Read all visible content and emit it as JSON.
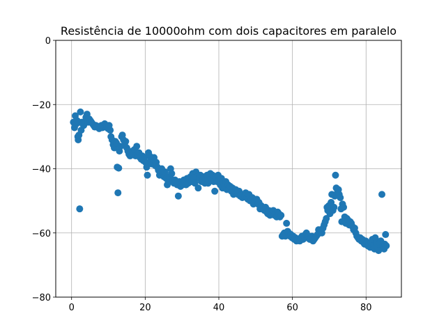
{
  "chart_data": {
    "type": "scatter",
    "title": "Resistência de 10000ohm com dois capacitores em paralelo",
    "xlabel": "",
    "ylabel": "",
    "xlim": [
      -4.3,
      89.6
    ],
    "ylim": [
      -80,
      0
    ],
    "xticks": [
      0,
      20,
      40,
      60,
      80
    ],
    "yticks": [
      0,
      -20,
      -40,
      -60,
      -80
    ],
    "grid": true,
    "marker_color": "#1f77b4",
    "points": [
      [
        0.5,
        -25.5
      ],
      [
        0.8,
        -27.2
      ],
      [
        1.0,
        -23.5
      ],
      [
        1.3,
        -26.0
      ],
      [
        1.5,
        -25.0
      ],
      [
        1.7,
        -30.0
      ],
      [
        1.8,
        -31.0
      ],
      [
        2.0,
        -29.5
      ],
      [
        2.2,
        -52.5
      ],
      [
        2.4,
        -22.3
      ],
      [
        2.6,
        -28.0
      ],
      [
        2.8,
        -25.5
      ],
      [
        3.0,
        -26.0
      ],
      [
        3.3,
        -26.5
      ],
      [
        3.6,
        -25.8
      ],
      [
        3.9,
        -24.0
      ],
      [
        4.2,
        -23.0
      ],
      [
        4.5,
        -25.5
      ],
      [
        4.8,
        -24.5
      ],
      [
        5.1,
        -25.0
      ],
      [
        5.4,
        -25.5
      ],
      [
        5.7,
        -26.0
      ],
      [
        6.0,
        -26.5
      ],
      [
        6.3,
        -27.0
      ],
      [
        6.6,
        -26.5
      ],
      [
        6.9,
        -27.0
      ],
      [
        7.2,
        -26.8
      ],
      [
        7.5,
        -27.5
      ],
      [
        7.8,
        -27.0
      ],
      [
        8.1,
        -26.5
      ],
      [
        8.4,
        -27.2
      ],
      [
        8.7,
        -26.5
      ],
      [
        9.0,
        -26.0
      ],
      [
        9.3,
        -27.0
      ],
      [
        9.6,
        -26.8
      ],
      [
        9.9,
        -27.5
      ],
      [
        10.2,
        -26.5
      ],
      [
        10.5,
        -28.0
      ],
      [
        10.7,
        -30.0
      ],
      [
        11.0,
        -31.0
      ],
      [
        11.3,
        -32.5
      ],
      [
        11.6,
        -33.5
      ],
      [
        11.9,
        -31.5
      ],
      [
        12.2,
        -32.0
      ],
      [
        12.4,
        -39.5
      ],
      [
        12.6,
        -47.5
      ],
      [
        12.8,
        -39.8
      ],
      [
        13.0,
        -34.5
      ],
      [
        13.3,
        -33.0
      ],
      [
        13.6,
        -30.0
      ],
      [
        13.8,
        -29.5
      ],
      [
        14.1,
        -31.0
      ],
      [
        14.4,
        -32.5
      ],
      [
        14.7,
        -31.5
      ],
      [
        15.0,
        -33.5
      ],
      [
        15.3,
        -34.5
      ],
      [
        15.6,
        -35.5
      ],
      [
        15.9,
        -36.0
      ],
      [
        16.2,
        -35.0
      ],
      [
        16.5,
        -34.5
      ],
      [
        16.8,
        -35.5
      ],
      [
        17.1,
        -34.0
      ],
      [
        17.4,
        -36.0
      ],
      [
        17.7,
        -33.0
      ],
      [
        18.0,
        -35.5
      ],
      [
        18.3,
        -35.0
      ],
      [
        18.6,
        -36.5
      ],
      [
        18.9,
        -37.0
      ],
      [
        19.2,
        -36.0
      ],
      [
        19.5,
        -37.5
      ],
      [
        19.8,
        -36.5
      ],
      [
        20.1,
        -38.0
      ],
      [
        20.4,
        -39.5
      ],
      [
        20.6,
        -42.0
      ],
      [
        20.9,
        -35.0
      ],
      [
        21.2,
        -36.0
      ],
      [
        21.5,
        -37.5
      ],
      [
        21.8,
        -38.5
      ],
      [
        22.1,
        -37.0
      ],
      [
        22.4,
        -36.5
      ],
      [
        22.7,
        -39.0
      ],
      [
        23.0,
        -38.0
      ],
      [
        23.3,
        -39.5
      ],
      [
        23.6,
        -40.5
      ],
      [
        23.9,
        -42.0
      ],
      [
        24.2,
        -41.0
      ],
      [
        24.5,
        -40.0
      ],
      [
        24.8,
        -41.5
      ],
      [
        25.1,
        -42.5
      ],
      [
        25.4,
        -41.0
      ],
      [
        25.7,
        -43.0
      ],
      [
        26.0,
        -45.0
      ],
      [
        26.3,
        -44.0
      ],
      [
        26.6,
        -42.5
      ],
      [
        26.9,
        -40.0
      ],
      [
        27.2,
        -41.5
      ],
      [
        27.5,
        -43.5
      ],
      [
        27.8,
        -44.5
      ],
      [
        28.1,
        -43.5
      ],
      [
        28.4,
        -44.0
      ],
      [
        28.7,
        -45.0
      ],
      [
        29.0,
        -48.5
      ],
      [
        29.3,
        -44.0
      ],
      [
        29.6,
        -45.5
      ],
      [
        29.9,
        -44.5
      ],
      [
        30.2,
        -45.0
      ],
      [
        30.5,
        -43.5
      ],
      [
        30.8,
        -44.0
      ],
      [
        31.1,
        -45.0
      ],
      [
        31.4,
        -43.0
      ],
      [
        31.7,
        -44.5
      ],
      [
        32.0,
        -43.0
      ],
      [
        32.3,
        -42.5
      ],
      [
        32.6,
        -44.0
      ],
      [
        32.9,
        -41.5
      ],
      [
        33.2,
        -43.0
      ],
      [
        33.5,
        -44.5
      ],
      [
        33.8,
        -41.0
      ],
      [
        34.1,
        -42.5
      ],
      [
        34.4,
        -46.0
      ],
      [
        34.7,
        -43.0
      ],
      [
        35.0,
        -42.0
      ],
      [
        35.3,
        -44.0
      ],
      [
        35.6,
        -43.5
      ],
      [
        35.9,
        -42.5
      ],
      [
        36.2,
        -44.5
      ],
      [
        36.5,
        -43.0
      ],
      [
        36.8,
        -42.0
      ],
      [
        37.1,
        -44.5
      ],
      [
        37.4,
        -43.5
      ],
      [
        37.7,
        -41.5
      ],
      [
        38.0,
        -43.0
      ],
      [
        38.3,
        -42.0
      ],
      [
        38.6,
        -44.0
      ],
      [
        38.9,
        -47.0
      ],
      [
        39.2,
        -42.5
      ],
      [
        39.5,
        -44.0
      ],
      [
        39.8,
        -42.0
      ],
      [
        40.1,
        -43.5
      ],
      [
        40.4,
        -45.0
      ],
      [
        40.7,
        -43.0
      ],
      [
        41.0,
        -46.0
      ],
      [
        41.3,
        -44.5
      ],
      [
        41.6,
        -45.5
      ],
      [
        41.9,
        -44.0
      ],
      [
        42.2,
        -46.5
      ],
      [
        42.5,
        -45.0
      ],
      [
        42.8,
        -46.0
      ],
      [
        43.1,
        -45.5
      ],
      [
        43.4,
        -47.0
      ],
      [
        43.7,
        -46.0
      ],
      [
        44.0,
        -48.0
      ],
      [
        44.3,
        -47.0
      ],
      [
        44.6,
        -46.5
      ],
      [
        44.9,
        -47.5
      ],
      [
        45.2,
        -48.0
      ],
      [
        45.5,
        -47.0
      ],
      [
        45.8,
        -48.5
      ],
      [
        46.1,
        -48.0
      ],
      [
        46.4,
        -49.0
      ],
      [
        46.7,
        -48.0
      ],
      [
        47.0,
        -48.5
      ],
      [
        47.3,
        -47.5
      ],
      [
        47.6,
        -49.0
      ],
      [
        47.9,
        -49.5
      ],
      [
        48.2,
        -48.0
      ],
      [
        48.5,
        -50.0
      ],
      [
        48.8,
        -49.5
      ],
      [
        49.1,
        -49.0
      ],
      [
        49.4,
        -51.0
      ],
      [
        49.7,
        -49.5
      ],
      [
        50.0,
        -50.0
      ],
      [
        50.3,
        -49.5
      ],
      [
        50.6,
        -51.0
      ],
      [
        50.9,
        -50.5
      ],
      [
        51.2,
        -52.5
      ],
      [
        51.5,
        -51.5
      ],
      [
        51.8,
        -52.0
      ],
      [
        52.1,
        -52.5
      ],
      [
        52.4,
        -53.0
      ],
      [
        52.7,
        -52.0
      ],
      [
        53.0,
        -53.5
      ],
      [
        53.3,
        -54.0
      ],
      [
        53.6,
        -53.0
      ],
      [
        53.9,
        -54.5
      ],
      [
        54.2,
        -53.5
      ],
      [
        54.5,
        -54.0
      ],
      [
        54.8,
        -53.0
      ],
      [
        55.1,
        -54.5
      ],
      [
        55.4,
        -54.0
      ],
      [
        55.7,
        -55.0
      ],
      [
        56.0,
        -53.5
      ],
      [
        56.3,
        -54.0
      ],
      [
        56.6,
        -55.0
      ],
      [
        56.9,
        -54.5
      ],
      [
        57.2,
        -61.0
      ],
      [
        57.5,
        -60.5
      ],
      [
        57.8,
        -60.0
      ],
      [
        58.1,
        -61.0
      ],
      [
        58.4,
        -57.0
      ],
      [
        58.7,
        -59.5
      ],
      [
        59.0,
        -60.0
      ],
      [
        59.3,
        -61.0
      ],
      [
        59.6,
        -60.5
      ],
      [
        59.9,
        -61.5
      ],
      [
        60.2,
        -61.0
      ],
      [
        60.5,
        -62.0
      ],
      [
        60.8,
        -61.5
      ],
      [
        61.1,
        -62.5
      ],
      [
        61.4,
        -62.0
      ],
      [
        61.7,
        -62.0
      ],
      [
        62.0,
        -62.5
      ],
      [
        62.3,
        -61.5
      ],
      [
        62.6,
        -61.0
      ],
      [
        62.9,
        -62.0
      ],
      [
        63.2,
        -61.0
      ],
      [
        63.5,
        -60.5
      ],
      [
        63.8,
        -60.0
      ],
      [
        64.1,
        -61.5
      ],
      [
        64.4,
        -61.0
      ],
      [
        64.7,
        -62.0
      ],
      [
        65.0,
        -61.5
      ],
      [
        65.3,
        -61.0
      ],
      [
        65.6,
        -62.5
      ],
      [
        65.9,
        -62.0
      ],
      [
        66.2,
        -61.5
      ],
      [
        66.5,
        -61.0
      ],
      [
        66.8,
        -60.5
      ],
      [
        67.1,
        -59.0
      ],
      [
        67.4,
        -60.0
      ],
      [
        67.7,
        -59.5
      ],
      [
        68.0,
        -60.0
      ],
      [
        68.3,
        -58.5
      ],
      [
        68.6,
        -57.5
      ],
      [
        68.9,
        -56.5
      ],
      [
        69.2,
        -55.5
      ],
      [
        69.4,
        -52.0
      ],
      [
        69.6,
        -53.0
      ],
      [
        69.9,
        -51.5
      ],
      [
        70.2,
        -54.0
      ],
      [
        70.5,
        -50.5
      ],
      [
        70.7,
        -48.0
      ],
      [
        71.0,
        -53.0
      ],
      [
        71.3,
        -52.0
      ],
      [
        71.5,
        -48.5
      ],
      [
        71.7,
        -42.0
      ],
      [
        71.9,
        -46.0
      ],
      [
        72.2,
        -47.5
      ],
      [
        72.5,
        -46.5
      ],
      [
        72.7,
        -48.0
      ],
      [
        73.0,
        -49.0
      ],
      [
        73.2,
        -52.5
      ],
      [
        73.4,
        -56.5
      ],
      [
        73.6,
        -51.0
      ],
      [
        73.9,
        -52.0
      ],
      [
        74.2,
        -55.0
      ],
      [
        74.5,
        -57.0
      ],
      [
        74.8,
        -55.5
      ],
      [
        75.1,
        -56.0
      ],
      [
        75.4,
        -57.5
      ],
      [
        75.7,
        -56.5
      ],
      [
        76.0,
        -57.0
      ],
      [
        76.3,
        -58.0
      ],
      [
        76.6,
        -59.0
      ],
      [
        76.9,
        -58.5
      ],
      [
        77.2,
        -60.0
      ],
      [
        77.5,
        -61.0
      ],
      [
        77.8,
        -61.5
      ],
      [
        78.1,
        -62.0
      ],
      [
        78.4,
        -61.5
      ],
      [
        78.7,
        -62.5
      ],
      [
        79.0,
        -62.0
      ],
      [
        79.3,
        -63.0
      ],
      [
        79.6,
        -63.5
      ],
      [
        79.9,
        -62.5
      ],
      [
        80.2,
        -63.0
      ],
      [
        80.5,
        -64.0
      ],
      [
        80.8,
        -63.5
      ],
      [
        81.1,
        -64.5
      ],
      [
        81.4,
        -63.0
      ],
      [
        81.7,
        -62.0
      ],
      [
        82.0,
        -64.0
      ],
      [
        82.3,
        -65.0
      ],
      [
        82.5,
        -61.5
      ],
      [
        82.8,
        -63.5
      ],
      [
        83.1,
        -64.5
      ],
      [
        83.4,
        -65.5
      ],
      [
        83.7,
        -63.0
      ],
      [
        84.0,
        -62.5
      ],
      [
        84.3,
        -48.0
      ],
      [
        84.6,
        -64.0
      ],
      [
        84.9,
        -65.0
      ],
      [
        85.1,
        -63.5
      ],
      [
        85.3,
        -60.5
      ],
      [
        85.5,
        -64.0
      ]
    ]
  }
}
